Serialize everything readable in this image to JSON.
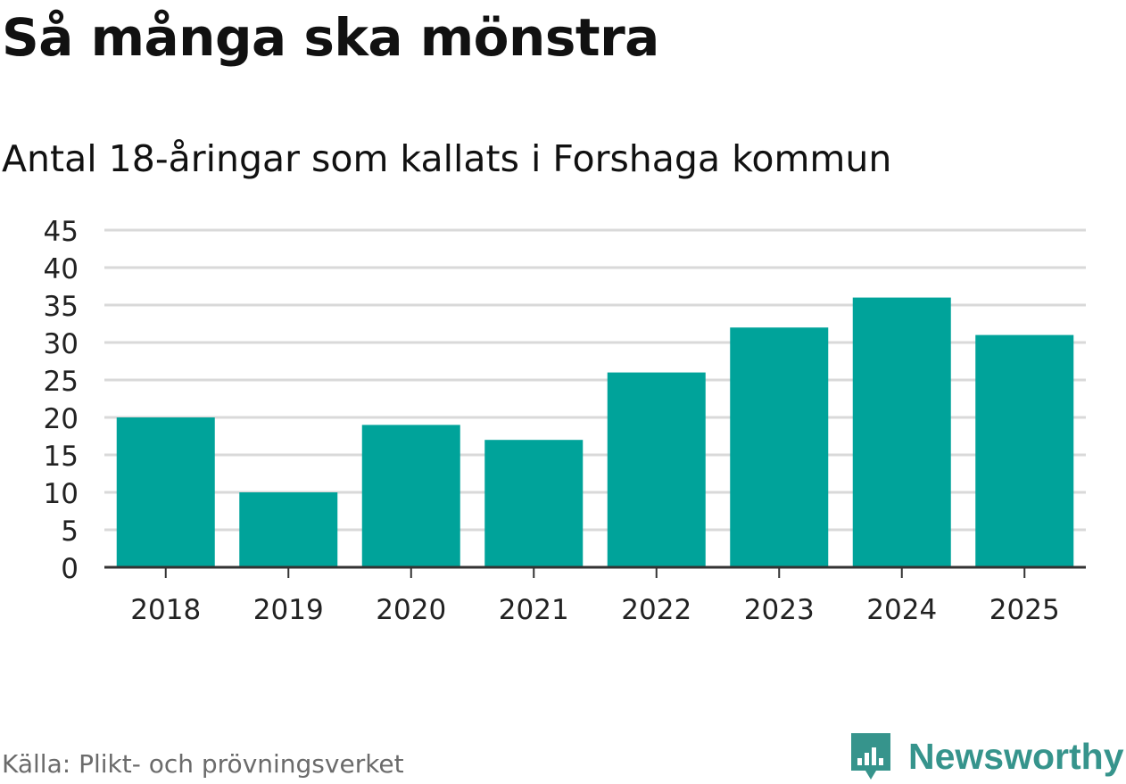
{
  "title": "Så många ska mönstra",
  "subtitle": "Antal 18-åringar som kallats i Forshaga kommun",
  "source": "Källa: Plikt- och prövningsverket",
  "brand": {
    "name": "Newsworthy",
    "icon": "newsworthy-logo-icon",
    "color": "#36948c"
  },
  "colors": {
    "bar": "#00a39a",
    "grid": "#d9d9d9",
    "axis": "#333333",
    "tick_text": "#222222"
  },
  "chart_data": {
    "type": "bar",
    "title": "Så många ska mönstra",
    "subtitle": "Antal 18-åringar som kallats i Forshaga kommun",
    "xlabel": "",
    "ylabel": "",
    "categories": [
      "2018",
      "2019",
      "2020",
      "2021",
      "2022",
      "2023",
      "2024",
      "2025"
    ],
    "values": [
      20,
      10,
      19,
      17,
      26,
      32,
      36,
      31
    ],
    "ylim": [
      0,
      45
    ],
    "yticks": [
      "0",
      "5",
      "10",
      "15",
      "20",
      "25",
      "30",
      "35",
      "40",
      "45"
    ],
    "grid": true,
    "legend": "none"
  }
}
